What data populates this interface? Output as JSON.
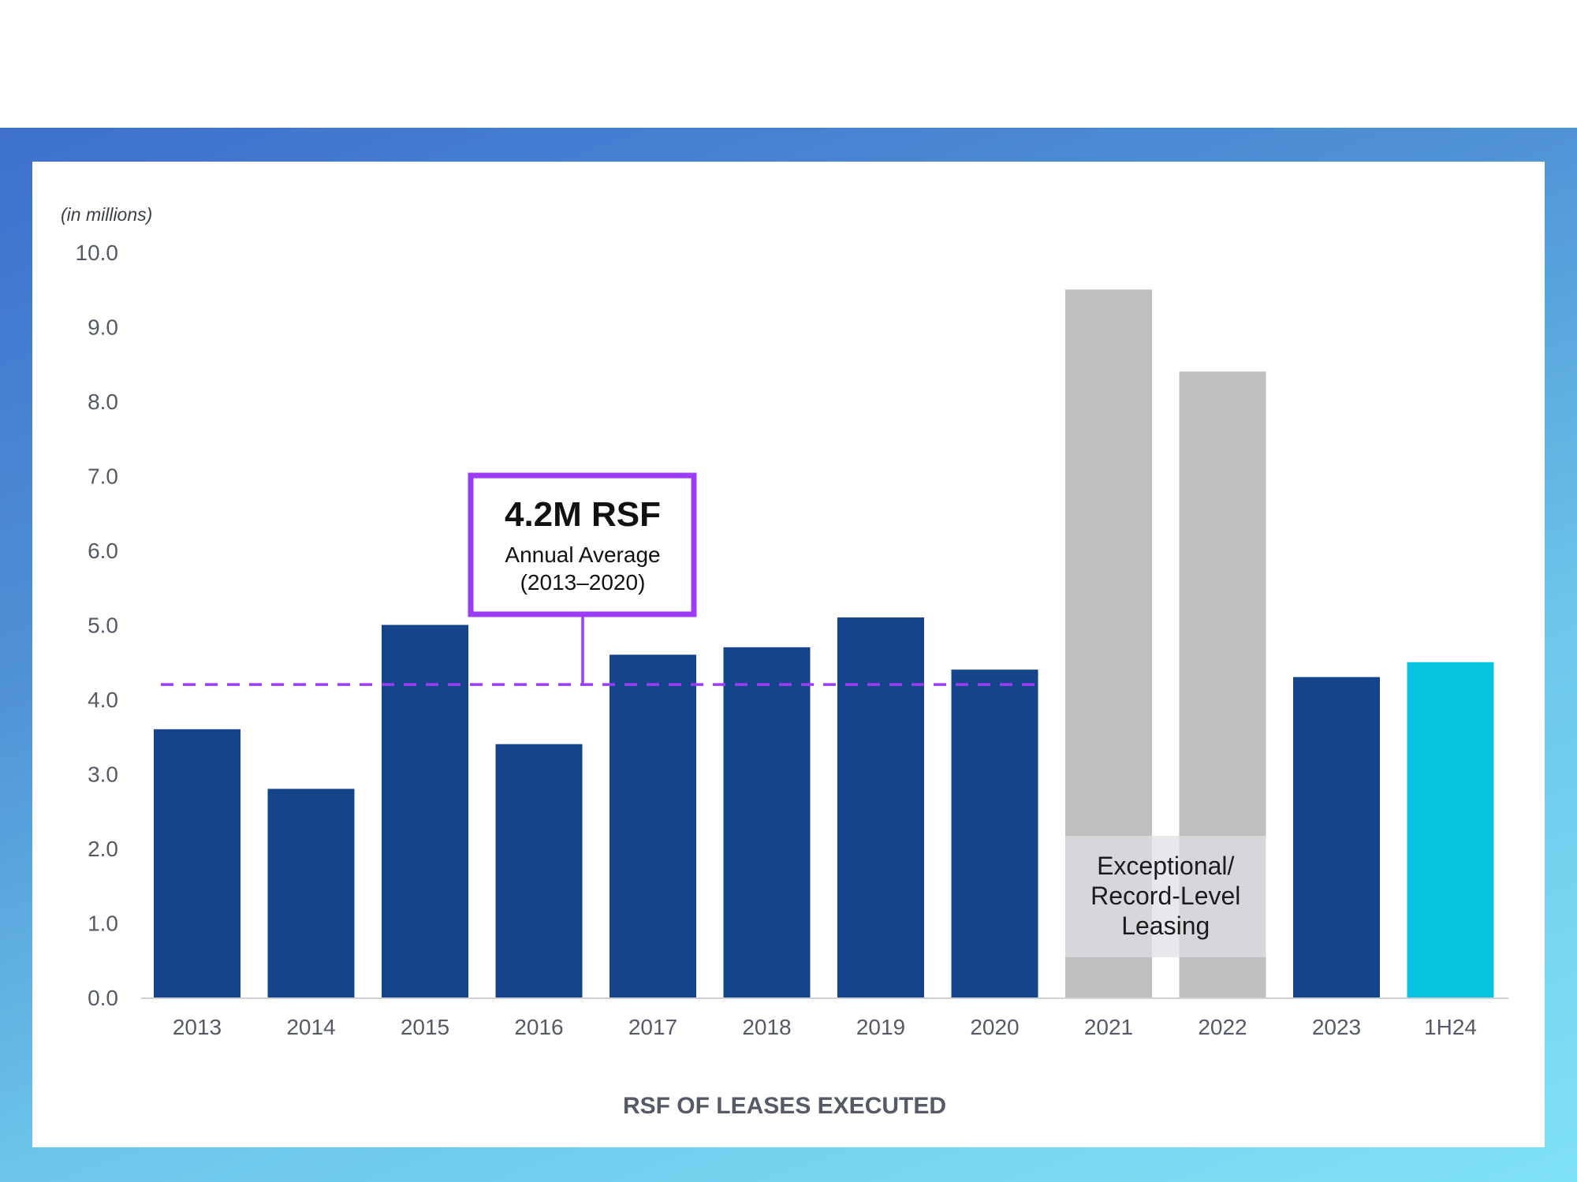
{
  "chart_data": {
    "type": "bar",
    "title": "RSF OF LEASES EXECUTED",
    "ylabel": "(in millions)",
    "xlabel": "",
    "ylim": [
      0,
      10
    ],
    "yticks": [
      "0.0",
      "1.0",
      "2.0",
      "3.0",
      "4.0",
      "5.0",
      "6.0",
      "7.0",
      "8.0",
      "9.0",
      "10.0"
    ],
    "categories": [
      "2013",
      "2014",
      "2015",
      "2016",
      "2017",
      "2018",
      "2019",
      "2020",
      "2021",
      "2022",
      "2023",
      "1H24"
    ],
    "values": [
      3.6,
      2.8,
      5.0,
      3.4,
      4.6,
      4.7,
      5.1,
      4.4,
      9.5,
      8.4,
      4.3,
      4.5
    ],
    "bar_groups": [
      "normal",
      "normal",
      "normal",
      "normal",
      "normal",
      "normal",
      "normal",
      "normal",
      "exceptional",
      "exceptional",
      "normal",
      "current"
    ],
    "colors": {
      "normal": "#16448a",
      "exceptional": "#bfbfbf",
      "current": "#06c4e0",
      "average": "#9b3cf7"
    },
    "average": {
      "value": 4.2,
      "headline": "4.2M RSF",
      "line1": "Annual Average",
      "line2": "(2013–2020)"
    },
    "exceptional_note": [
      "Exceptional/",
      "Record-Level",
      "Leasing"
    ],
    "grid": false
  }
}
